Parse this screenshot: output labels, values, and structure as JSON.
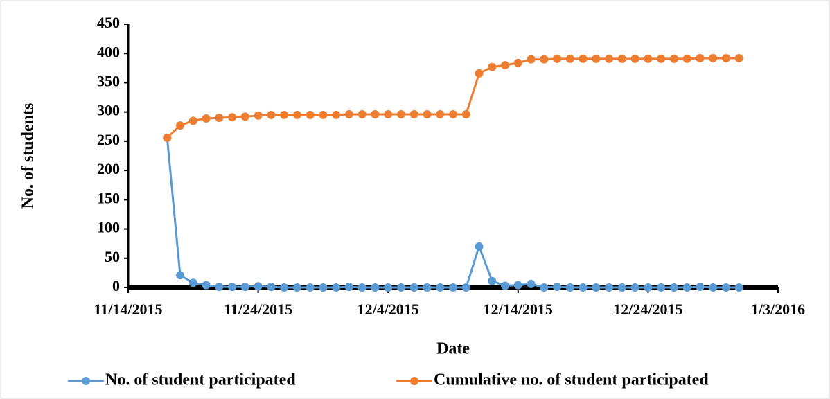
{
  "chart_data": {
    "type": "line",
    "xlabel": "Date",
    "ylabel": "No. of students",
    "x": [
      "11/17/2015",
      "11/18/2015",
      "11/19/2015",
      "11/20/2015",
      "11/21/2015",
      "11/22/2015",
      "11/23/2015",
      "11/24/2015",
      "11/25/2015",
      "11/26/2015",
      "11/27/2015",
      "11/28/2015",
      "11/29/2015",
      "11/30/2015",
      "12/1/2015",
      "12/2/2015",
      "12/3/2015",
      "12/4/2015",
      "12/5/2015",
      "12/6/2015",
      "12/7/2015",
      "12/8/2015",
      "12/9/2015",
      "12/10/2015",
      "12/11/2015",
      "12/12/2015",
      "12/13/2015",
      "12/14/2015",
      "12/15/2015",
      "12/16/2015",
      "12/17/2015",
      "12/18/2015",
      "12/19/2015",
      "12/20/2015",
      "12/21/2015",
      "12/22/2015",
      "12/23/2015",
      "12/24/2015",
      "12/25/2015",
      "12/26/2015",
      "12/27/2015",
      "12/28/2015",
      "12/29/2015",
      "12/30/2015",
      "12/31/2015"
    ],
    "series": [
      {
        "name": "No. of student participated",
        "color": "#5b9bd5",
        "values": [
          256,
          21,
          8,
          4,
          1,
          1,
          1,
          2,
          1,
          0,
          0,
          0,
          0,
          0,
          1,
          0,
          0,
          0,
          0,
          0,
          0,
          0,
          0,
          0,
          70,
          11,
          3,
          4,
          6,
          0,
          1,
          0,
          0,
          0,
          0,
          0,
          0,
          0,
          0,
          0,
          0,
          1,
          0,
          0,
          0
        ]
      },
      {
        "name": "Cumulative no. of student participated",
        "color": "#ed7d31",
        "values": [
          256,
          277,
          285,
          289,
          290,
          291,
          292,
          294,
          295,
          295,
          295,
          295,
          295,
          295,
          296,
          296,
          296,
          296,
          296,
          296,
          296,
          296,
          296,
          296,
          366,
          377,
          380,
          384,
          390,
          390,
          391,
          391,
          391,
          391,
          391,
          391,
          391,
          391,
          391,
          391,
          391,
          392,
          392,
          392,
          392
        ]
      }
    ],
    "xlim": [
      "11/14/2015",
      "1/3/2016"
    ],
    "xticks": [
      "11/14/2015",
      "11/24/2015",
      "12/4/2015",
      "12/14/2015",
      "12/24/2015",
      "1/3/2016"
    ],
    "ylim": [
      0,
      450
    ],
    "yticks": [
      0,
      50,
      100,
      150,
      200,
      250,
      300,
      350,
      400,
      450
    ],
    "legend": "bottom"
  }
}
